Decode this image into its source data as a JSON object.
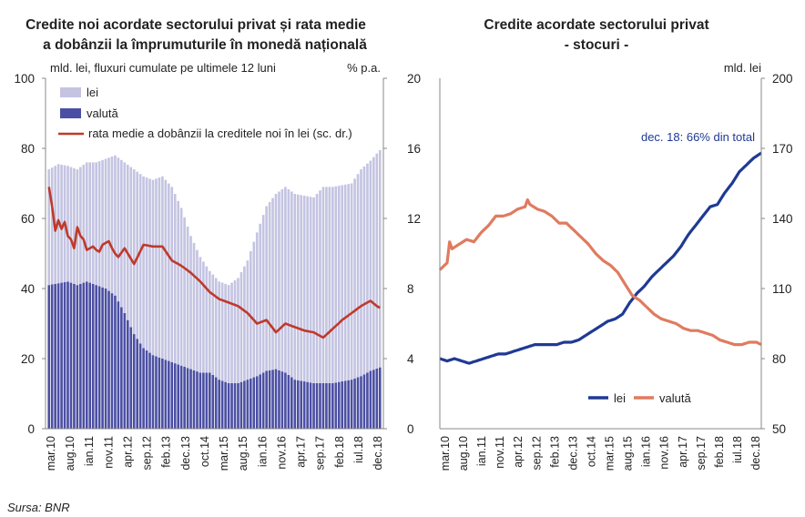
{
  "chart_data": [
    {
      "type": "bar",
      "title": "Credite noi acordate sectorului privat și rata medie a dobânzii la împrumuturile în monedă națională",
      "title_line1": "Credite noi acordate sectorului privat și rata medie",
      "title_line2": "a dobânzii la împrumuturile în monedă națională",
      "ylabel": "mld. lei, fluxuri cumulate pe ultimele 12 luni",
      "y2label": "% p.a.",
      "ylim": [
        0,
        100
      ],
      "y2lim": [
        0,
        20
      ],
      "yticks": [
        "0",
        "20",
        "40",
        "60",
        "80",
        "100"
      ],
      "y2ticks": [
        "0",
        "4",
        "8",
        "12",
        "16",
        "20"
      ],
      "stacked": true,
      "grid": false,
      "legend_position": "top-left",
      "x_tick_labels": [
        "mar.10",
        "aug.10",
        "ian.11",
        "nov.11",
        "apr.12",
        "sep.12",
        "feb.13",
        "dec.13",
        "oct.14",
        "mar.15",
        "aug.15",
        "ian.16",
        "nov.16",
        "apr.17",
        "sep.17",
        "feb.18",
        "iul.18",
        "dec.18"
      ],
      "series": [
        {
          "name": "lei",
          "color": "#c4c4e2",
          "anchors": [
            [
              0,
              33
            ],
            [
              3,
              34
            ],
            [
              6,
              33
            ],
            [
              9,
              33
            ],
            [
              12,
              34
            ],
            [
              15,
              35
            ],
            [
              18,
              37
            ],
            [
              21,
              40
            ],
            [
              24,
              43
            ],
            [
              27,
              47
            ],
            [
              30,
              49
            ],
            [
              33,
              50
            ],
            [
              36,
              52
            ],
            [
              39,
              50
            ],
            [
              42,
              45
            ],
            [
              45,
              38
            ],
            [
              48,
              33
            ],
            [
              51,
              29
            ],
            [
              54,
              28
            ],
            [
              57,
              28
            ],
            [
              60,
              30
            ],
            [
              63,
              34
            ],
            [
              66,
              41
            ],
            [
              69,
              47
            ],
            [
              72,
              50
            ],
            [
              75,
              53
            ],
            [
              78,
              53
            ],
            [
              81,
              53
            ],
            [
              84,
              53
            ],
            [
              87,
              56
            ],
            [
              90,
              56
            ],
            [
              93,
              56
            ],
            [
              96,
              56
            ],
            [
              99,
              59
            ],
            [
              102,
              60
            ],
            [
              105,
              62
            ]
          ]
        },
        {
          "name": "valută",
          "color": "#4b4fa3",
          "anchors": [
            [
              0,
              41
            ],
            [
              6,
              42
            ],
            [
              9,
              41
            ],
            [
              12,
              42
            ],
            [
              15,
              41
            ],
            [
              18,
              40
            ],
            [
              21,
              38
            ],
            [
              24,
              33
            ],
            [
              27,
              27
            ],
            [
              30,
              23
            ],
            [
              33,
              21
            ],
            [
              36,
              20
            ],
            [
              39,
              19
            ],
            [
              42,
              18
            ],
            [
              45,
              17
            ],
            [
              48,
              16
            ],
            [
              51,
              16
            ],
            [
              54,
              14
            ],
            [
              57,
              13
            ],
            [
              60,
              13
            ],
            [
              63,
              14
            ],
            [
              66,
              15
            ],
            [
              69,
              16.5
            ],
            [
              72,
              17
            ],
            [
              75,
              16
            ],
            [
              78,
              14
            ],
            [
              81,
              13.5
            ],
            [
              84,
              13
            ],
            [
              87,
              13
            ],
            [
              90,
              13
            ],
            [
              93,
              13.5
            ],
            [
              96,
              14
            ],
            [
              99,
              15
            ],
            [
              102,
              16.5
            ],
            [
              105,
              17.5
            ]
          ]
        },
        {
          "name": "rata medie a dobânzii la creditele noi în lei (sc. dr.)",
          "color": "#c0392b",
          "axis": "right",
          "anchors": [
            [
              0,
              13.8
            ],
            [
              1,
              12.7
            ],
            [
              2,
              11.3
            ],
            [
              3,
              11.9
            ],
            [
              4,
              11.4
            ],
            [
              5,
              11.8
            ],
            [
              6,
              11.0
            ],
            [
              7,
              10.8
            ],
            [
              8,
              10.3
            ],
            [
              9,
              11.5
            ],
            [
              10,
              11.0
            ],
            [
              11,
              10.8
            ],
            [
              12,
              10.2
            ],
            [
              13,
              10.3
            ],
            [
              14,
              10.4
            ],
            [
              15,
              10.2
            ],
            [
              16,
              10.1
            ],
            [
              17,
              10.5
            ],
            [
              18,
              10.6
            ],
            [
              19,
              10.7
            ],
            [
              20,
              10.3
            ],
            [
              21,
              10.0
            ],
            [
              22,
              9.8
            ],
            [
              24,
              10.3
            ],
            [
              27,
              9.4
            ],
            [
              30,
              10.5
            ],
            [
              33,
              10.4
            ],
            [
              36,
              10.4
            ],
            [
              39,
              9.6
            ],
            [
              42,
              9.3
            ],
            [
              45,
              8.9
            ],
            [
              48,
              8.4
            ],
            [
              51,
              7.8
            ],
            [
              54,
              7.4
            ],
            [
              57,
              7.2
            ],
            [
              60,
              7.0
            ],
            [
              63,
              6.6
            ],
            [
              66,
              6.0
            ],
            [
              69,
              6.2
            ],
            [
              72,
              5.5
            ],
            [
              75,
              6.0
            ],
            [
              78,
              5.8
            ],
            [
              81,
              5.6
            ],
            [
              84,
              5.5
            ],
            [
              87,
              5.2
            ],
            [
              90,
              5.7
            ],
            [
              93,
              6.2
            ],
            [
              96,
              6.6
            ],
            [
              99,
              7.0
            ],
            [
              102,
              7.3
            ],
            [
              104,
              7.0
            ],
            [
              105,
              6.9
            ]
          ]
        }
      ]
    },
    {
      "type": "line",
      "title": "Credite acordate sectorului privat - stocuri -",
      "title_line1": "Credite acordate sectorului privat",
      "title_line2": "- stocuri -",
      "ylabel": "mld. lei",
      "ylim": [
        50,
        200
      ],
      "yticks": [
        "50",
        "80",
        "110",
        "140",
        "170",
        "200"
      ],
      "grid": false,
      "legend_position": "bottom-center",
      "annotation": "dec. 18: 66% din total",
      "x_tick_labels": [
        "mar.10",
        "aug.10",
        "ian.11",
        "nov.11",
        "apr.12",
        "sep.12",
        "feb.13",
        "dec.13",
        "oct.14",
        "mar.15",
        "aug.15",
        "ian.16",
        "nov.16",
        "apr.17",
        "sep.17",
        "feb.18",
        "iul.18",
        "dec.18"
      ],
      "series": [
        {
          "name": "lei",
          "color": "#1f3a93",
          "anchors": [
            [
              0,
              80
            ],
            [
              3,
              79
            ],
            [
              6,
              80
            ],
            [
              9,
              79
            ],
            [
              12,
              78
            ],
            [
              15,
              79
            ],
            [
              18,
              80
            ],
            [
              21,
              81
            ],
            [
              24,
              82
            ],
            [
              27,
              82
            ],
            [
              30,
              83
            ],
            [
              33,
              84
            ],
            [
              36,
              85
            ],
            [
              39,
              86
            ],
            [
              42,
              86
            ],
            [
              45,
              86
            ],
            [
              48,
              86
            ],
            [
              51,
              87
            ],
            [
              54,
              87
            ],
            [
              57,
              88
            ],
            [
              60,
              90
            ],
            [
              63,
              92
            ],
            [
              66,
              94
            ],
            [
              69,
              96
            ],
            [
              72,
              97
            ],
            [
              75,
              99
            ],
            [
              78,
              104
            ],
            [
              81,
              108
            ],
            [
              84,
              111
            ],
            [
              87,
              115
            ],
            [
              90,
              118
            ],
            [
              93,
              121
            ],
            [
              96,
              124
            ],
            [
              99,
              128
            ],
            [
              102,
              133
            ],
            [
              105,
              137
            ],
            [
              108,
              141
            ],
            [
              111,
              145
            ],
            [
              114,
              146
            ],
            [
              117,
              151
            ],
            [
              120,
              155
            ],
            [
              123,
              160
            ],
            [
              126,
              163
            ],
            [
              129,
              166
            ],
            [
              132,
              168
            ]
          ]
        },
        {
          "name": "valută",
          "color": "#e07b5f",
          "anchors": [
            [
              0,
              118
            ],
            [
              3,
              121
            ],
            [
              4,
              130
            ],
            [
              5,
              127
            ],
            [
              8,
              129
            ],
            [
              11,
              131
            ],
            [
              14,
              130
            ],
            [
              17,
              134
            ],
            [
              20,
              137
            ],
            [
              23,
              141
            ],
            [
              26,
              141
            ],
            [
              29,
              142
            ],
            [
              32,
              144
            ],
            [
              35,
              145
            ],
            [
              36,
              148
            ],
            [
              37,
              146
            ],
            [
              40,
              144
            ],
            [
              43,
              143
            ],
            [
              46,
              141
            ],
            [
              49,
              138
            ],
            [
              52,
              138
            ],
            [
              55,
              135
            ],
            [
              58,
              132
            ],
            [
              61,
              129
            ],
            [
              64,
              125
            ],
            [
              67,
              122
            ],
            [
              70,
              120
            ],
            [
              73,
              117
            ],
            [
              76,
              112
            ],
            [
              79,
              107
            ],
            [
              82,
              105
            ],
            [
              85,
              102
            ],
            [
              88,
              99
            ],
            [
              91,
              97
            ],
            [
              94,
              96
            ],
            [
              97,
              95
            ],
            [
              100,
              93
            ],
            [
              103,
              92
            ],
            [
              106,
              92
            ],
            [
              109,
              91
            ],
            [
              112,
              90
            ],
            [
              115,
              88
            ],
            [
              118,
              87
            ],
            [
              121,
              86
            ],
            [
              124,
              86
            ],
            [
              127,
              87
            ],
            [
              130,
              87
            ],
            [
              132,
              86
            ]
          ]
        }
      ]
    }
  ],
  "source": "Sursa: BNR"
}
